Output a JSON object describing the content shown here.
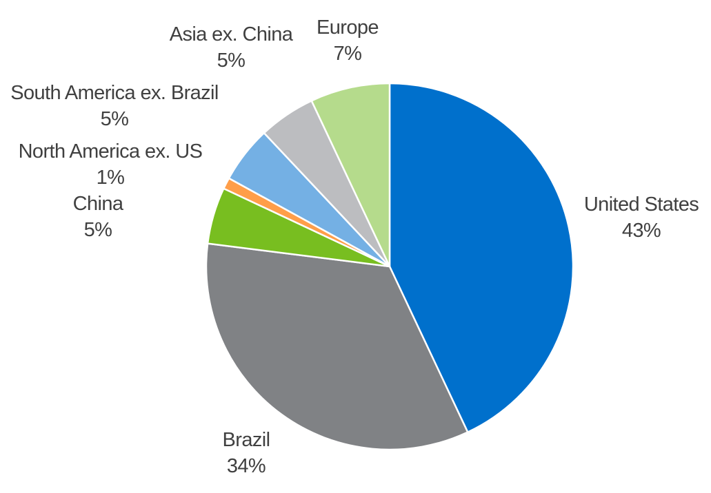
{
  "chart_data": {
    "type": "pie",
    "slices": [
      {
        "label": "United States",
        "value": 43,
        "value_label": "43%",
        "color": "#0070CC"
      },
      {
        "label": "Brazil",
        "value": 34,
        "value_label": "34%",
        "color": "#808285"
      },
      {
        "label": "China",
        "value": 5,
        "value_label": "5%",
        "color": "#78BE20"
      },
      {
        "label": "North America ex. US",
        "value": 1,
        "value_label": "1%",
        "color": "#FF9E49"
      },
      {
        "label": "South America ex. Brazil",
        "value": 5,
        "value_label": "5%",
        "color": "#74B0E4"
      },
      {
        "label": "Asia ex. China",
        "value": 5,
        "value_label": "5%",
        "color": "#BCBDC0"
      },
      {
        "label": "Europe",
        "value": 7,
        "value_label": "7%",
        "color": "#B5DB8C"
      }
    ],
    "start": "12 o'clock",
    "direction": "clockwise",
    "legend": "none"
  }
}
